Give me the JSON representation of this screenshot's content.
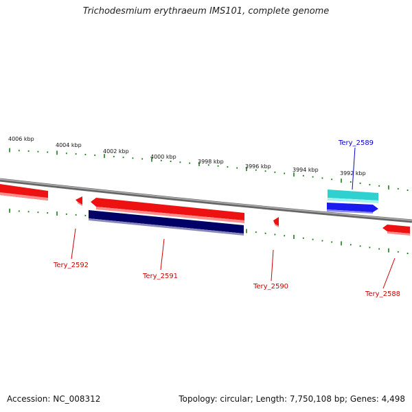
{
  "title": "Trichodesmium erythraeum IMS101, complete genome",
  "footer": {
    "accession": "Accession: NC_008312",
    "summary": "Topology: circular; Length: 7,750,108 bp; Genes: 4,498"
  },
  "ruler": {
    "labels": [
      "4006 kbp",
      "4004 kbp",
      "4002 kbp",
      "4000 kbp",
      "3998 kbp",
      "3996 kbp",
      "3994 kbp",
      "3992 kbp"
    ],
    "tick_color": "#1a7a1a"
  },
  "genes": [
    {
      "name": "Tery_2589",
      "strand": "forward",
      "color": "#2fd0d0",
      "label_color": "#0000cc"
    },
    {
      "name": "Tery_2592",
      "strand": "reverse",
      "color": "#ee1111",
      "label_color": "#cc0000"
    },
    {
      "name": "Tery_2591",
      "strand": "reverse",
      "color": "#ee1111",
      "label_color": "#cc0000"
    },
    {
      "name": "Tery_2590",
      "strand": "reverse",
      "color": "#ee1111",
      "label_color": "#cc0000"
    },
    {
      "name": "Tery_2588",
      "strand": "reverse",
      "color": "#ee1111",
      "label_color": "#cc0000"
    }
  ],
  "colors": {
    "backbone": "#888888",
    "cds_forward": "#1a1aee",
    "cds_reverse": "#000066",
    "gene_red": "#ee1111",
    "gene_cyan": "#2fd0d0"
  }
}
